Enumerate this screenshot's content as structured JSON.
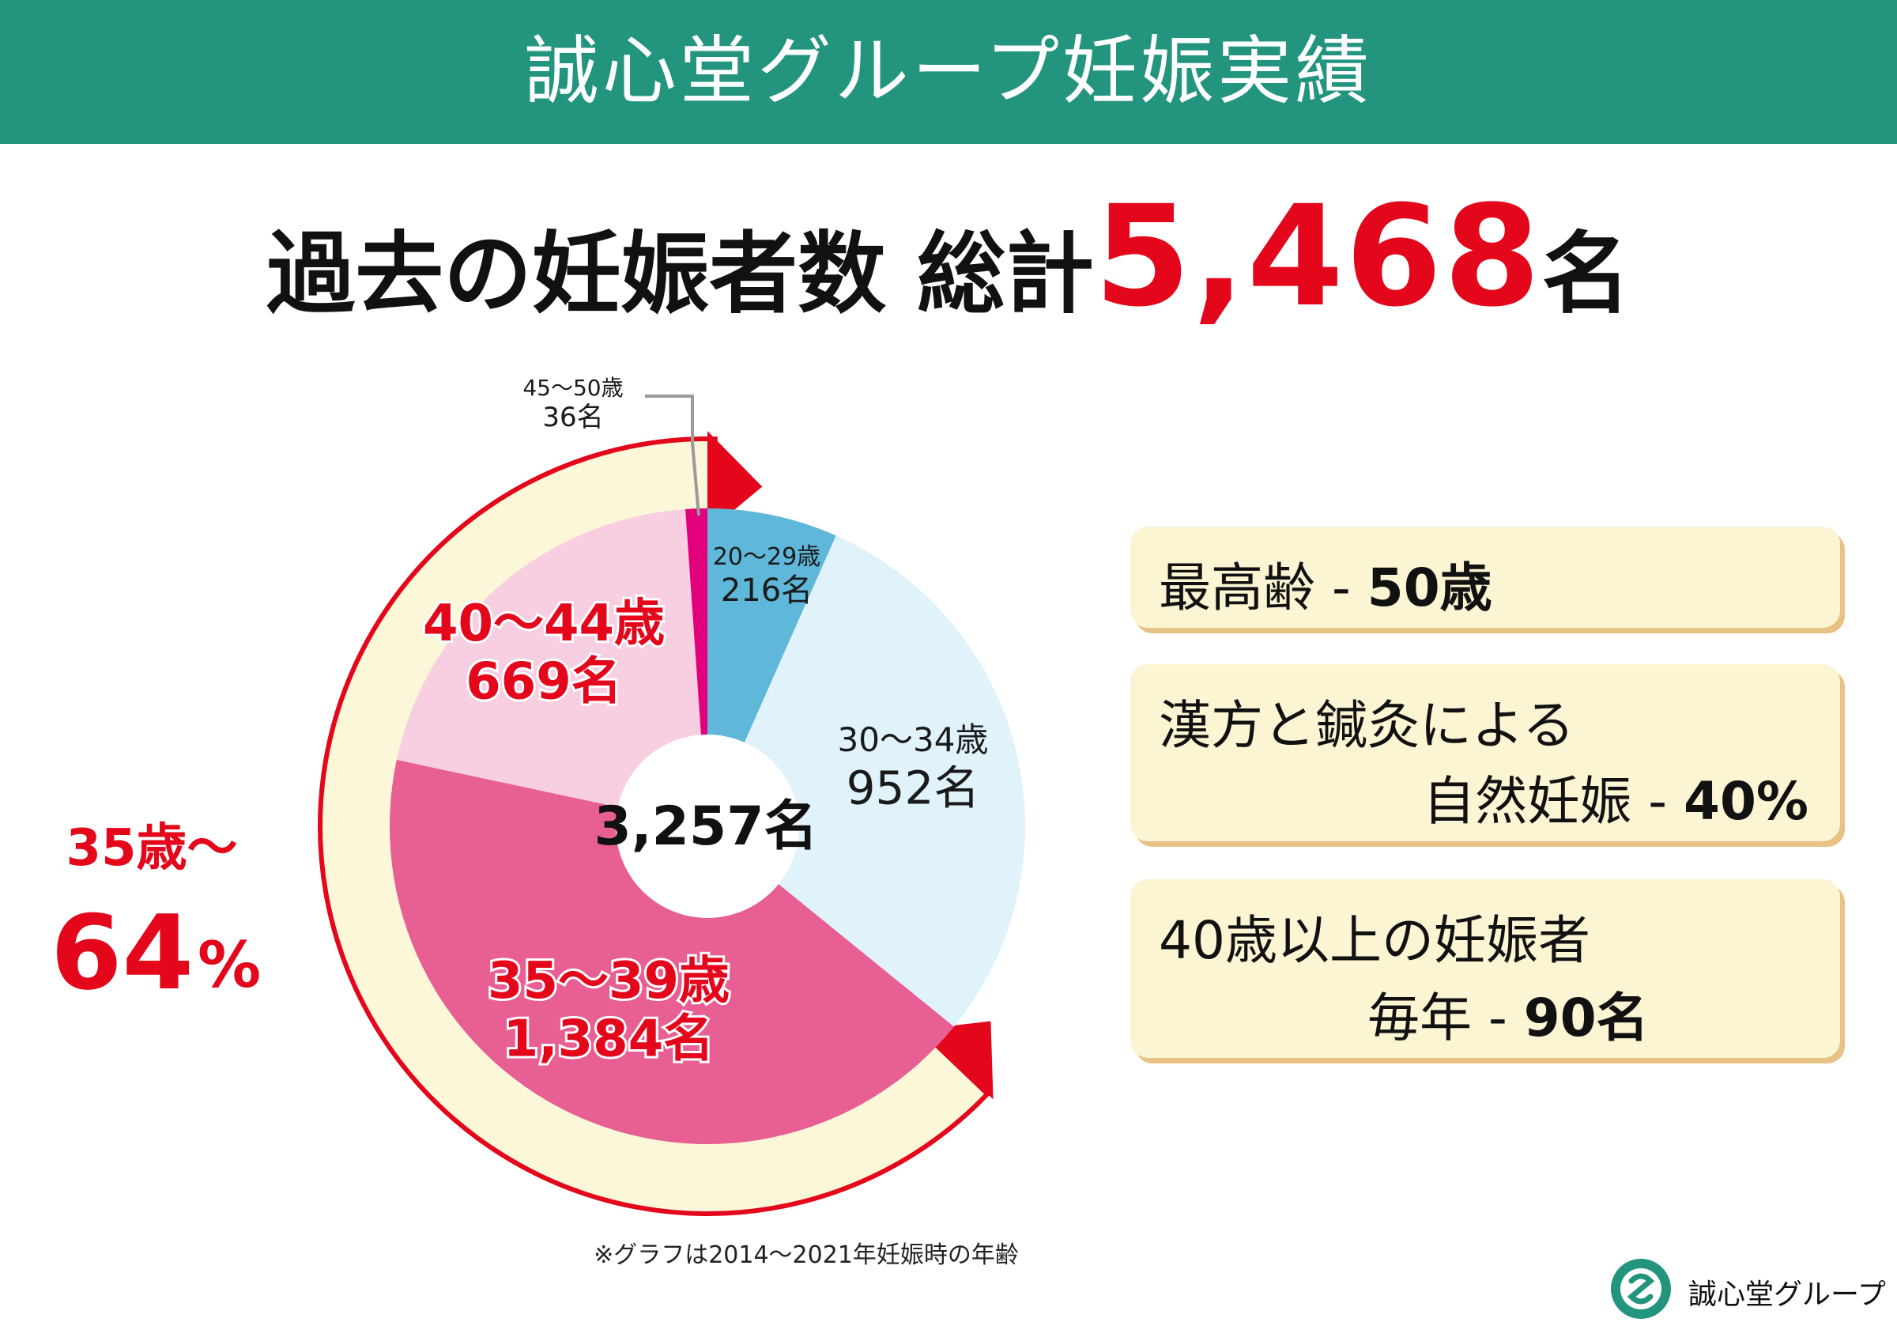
{
  "banner": {
    "title": "誠心堂グループ妊娠実績"
  },
  "headline": {
    "label": "過去の妊娠者数 総計",
    "total": "5,468",
    "unit": "名"
  },
  "colors": {
    "banner": "#23957f",
    "accent_red": "#e4061b",
    "card_bg": "#fcf5d3",
    "card_shadow": "#e8c184",
    "arc_band": "#fbf7d8"
  },
  "chart_data": {
    "type": "pie",
    "style": "donut",
    "center_label": "3,257名",
    "total": 3257,
    "slices": [
      {
        "category": "20〜29歳",
        "value": 216,
        "label": "216名",
        "color": "#5fb7d9"
      },
      {
        "category": "30〜34歳",
        "value": 952,
        "label": "952名",
        "color": "#e0f2fa"
      },
      {
        "category": "35〜39歳",
        "value": 1384,
        "label": "1,384名",
        "color": "#e85f93"
      },
      {
        "category": "40〜44歳",
        "value": 669,
        "label": "669名",
        "color": "#f8cfe0"
      },
      {
        "category": "45〜50歳",
        "value": 36,
        "label": "36名",
        "color": "#e2007d"
      }
    ],
    "annotation": {
      "line1": "35歳〜",
      "value": "64",
      "unit": "%"
    }
  },
  "cards": [
    {
      "lines": [
        "最高齢 - "
      ],
      "bold": "50歳"
    },
    {
      "lines": [
        "漢方と鍼灸による",
        "自然妊娠 - "
      ],
      "bold": "40%"
    },
    {
      "lines": [
        "40歳以上の妊娠者",
        "毎年 - "
      ],
      "bold": "90名"
    }
  ],
  "footnote": "※グラフは2014〜2021年妊娠時の年齢",
  "brand": "誠心堂グループ"
}
